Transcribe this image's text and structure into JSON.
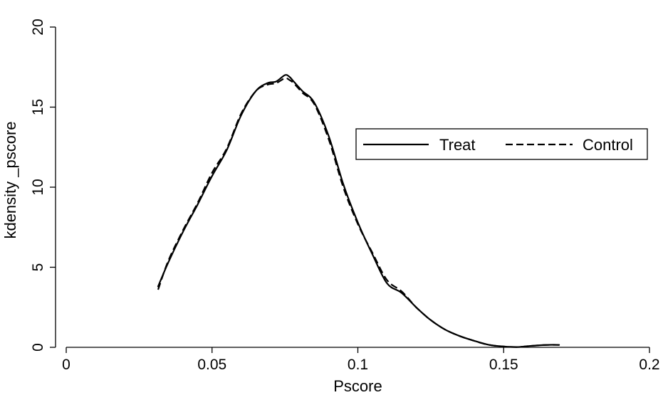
{
  "chart_data": {
    "type": "line",
    "xlabel": "Pscore",
    "ylabel": "kdensity _pscore",
    "xlim": [
      0,
      0.2
    ],
    "ylim": [
      0,
      20
    ],
    "xticks": [
      "0",
      "0.05",
      "0.1",
      "0.15",
      "0.2"
    ],
    "yticks": [
      "0",
      "5",
      "10",
      "15",
      "20"
    ],
    "legend_position": "right, upper-middle",
    "grid": false,
    "series": [
      {
        "name": "Treat",
        "style": "solid",
        "x": [
          0.0315,
          0.035,
          0.04,
          0.045,
          0.05,
          0.055,
          0.06,
          0.065,
          0.069,
          0.072,
          0.075,
          0.0765,
          0.078,
          0.081,
          0.085,
          0.09,
          0.095,
          0.1,
          0.105,
          0.11,
          0.115,
          0.12,
          0.125,
          0.13,
          0.135,
          0.14,
          0.145,
          0.15,
          0.155,
          0.16,
          0.165,
          0.169
        ],
        "y": [
          3.8,
          5.3,
          7.2,
          8.9,
          10.7,
          12.3,
          14.5,
          16.0,
          16.5,
          16.6,
          17.0,
          16.9,
          16.6,
          16.0,
          15.3,
          13.2,
          10.2,
          7.8,
          5.8,
          4.0,
          3.4,
          2.5,
          1.7,
          1.1,
          0.7,
          0.4,
          0.15,
          0.05,
          0.02,
          0.1,
          0.15,
          0.15
        ]
      },
      {
        "name": "Control",
        "style": "dashed",
        "x": [
          0.0315,
          0.035,
          0.04,
          0.045,
          0.05,
          0.055,
          0.06,
          0.065,
          0.069,
          0.072,
          0.075,
          0.0765,
          0.078,
          0.081,
          0.085,
          0.09,
          0.095,
          0.1,
          0.105,
          0.11,
          0.115,
          0.12,
          0.125,
          0.13,
          0.135,
          0.14,
          0.145,
          0.15,
          0.155,
          0.16,
          0.165,
          0.169
        ],
        "y": [
          3.6,
          5.4,
          7.3,
          9.0,
          10.9,
          12.4,
          14.6,
          16.0,
          16.4,
          16.5,
          16.8,
          16.7,
          16.5,
          15.9,
          15.2,
          13.0,
          10.0,
          7.7,
          5.9,
          4.2,
          3.5,
          2.5,
          1.7,
          1.1,
          0.7,
          0.4,
          0.15,
          0.05,
          0.02,
          0.1,
          0.15,
          0.15
        ]
      }
    ]
  }
}
